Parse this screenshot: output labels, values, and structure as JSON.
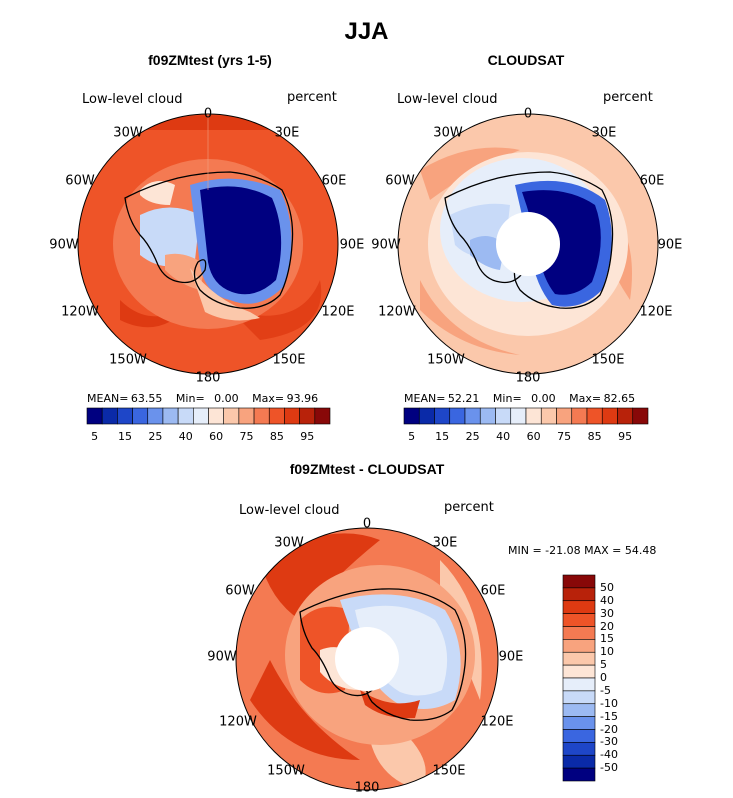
{
  "title": "JJA",
  "panels": [
    {
      "id": "model",
      "title": "f09ZMtest (yrs 1-5)",
      "variable_label": "Low-level cloud",
      "units": "percent",
      "stats": {
        "mean_label": "MEAN=",
        "mean": "63.55",
        "min_label": "Min=",
        "min": "0.00",
        "max_label": "Max=",
        "max": "93.96"
      }
    },
    {
      "id": "obs",
      "title": "CLOUDSAT",
      "variable_label": "Low-level cloud",
      "units": "percent",
      "stats": {
        "mean_label": "MEAN=",
        "mean": "52.21",
        "min_label": "Min=",
        "min": "0.00",
        "max_label": "Max=",
        "max": "82.65"
      }
    },
    {
      "id": "diff",
      "title": "f09ZMtest - CLOUDSAT",
      "variable_label": "Low-level cloud",
      "units": "percent",
      "minmax_text": "MIN = -21.08 MAX =  54.48"
    }
  ],
  "longitude_labels": [
    "0",
    "30E",
    "60E",
    "90E",
    "120E",
    "150E",
    "180",
    "150W",
    "120W",
    "90W",
    "60W",
    "30W"
  ],
  "top_colorbar": {
    "colors": [
      "#000080",
      "#0a2aa8",
      "#1e46c8",
      "#3a66e0",
      "#6a92ec",
      "#9cbaf2",
      "#c8daf8",
      "#e6eefa",
      "#fde5d6",
      "#fbc8ab",
      "#f8a37e",
      "#f47a52",
      "#ee5428",
      "#de3a12",
      "#b8220a",
      "#880808"
    ],
    "tick_labels": [
      "5",
      "15",
      "25",
      "40",
      "60",
      "75",
      "85",
      "95"
    ]
  },
  "diff_colorbar": {
    "colors": [
      "#880808",
      "#b8220a",
      "#de3a12",
      "#ee5428",
      "#f47a52",
      "#f8a37e",
      "#fbc8ab",
      "#fde5d6",
      "#e6eefa",
      "#c8daf8",
      "#9cbaf2",
      "#6a92ec",
      "#3a66e0",
      "#1e46c8",
      "#0a2aa8",
      "#000080"
    ],
    "tick_labels": [
      "50",
      "40",
      "30",
      "20",
      "15",
      "10",
      "5",
      "0",
      "-5",
      "-10",
      "-15",
      "-20",
      "-30",
      "-40",
      "-50"
    ]
  }
}
